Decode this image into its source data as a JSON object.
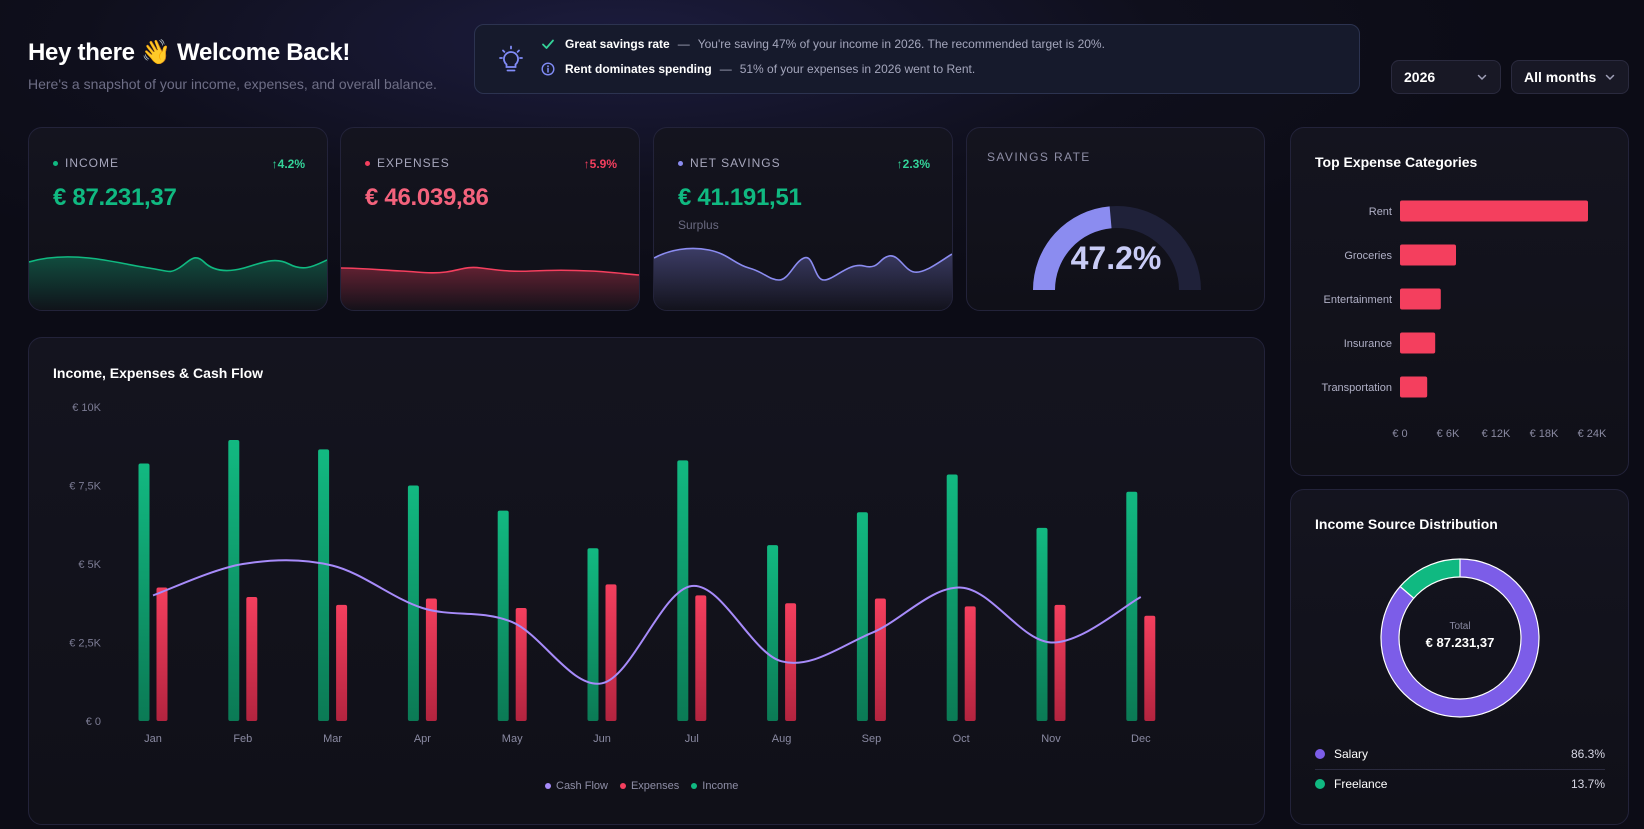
{
  "header": {
    "greeting_prefix": "Hey there",
    "greeting_emoji": "👋",
    "greeting_suffix": "Welcome Back!",
    "subtitle": "Here's a snapshot of your income, expenses, and overall balance."
  },
  "insights": [
    {
      "icon": "check-icon",
      "title": "Great savings rate",
      "text": "You're saving 47% of your income in 2026. The recommended target is 20%.",
      "color": "#34d399"
    },
    {
      "icon": "info-icon",
      "title": "Rent dominates spending",
      "text": "51% of your expenses in 2026 went to Rent.",
      "color": "#818cf8"
    }
  ],
  "filters": {
    "year": "2026",
    "period": "All months"
  },
  "kpis": {
    "income": {
      "label": "INCOME",
      "value": "€ 87.231,37",
      "trend": "↑4.2%",
      "color": "#10b981"
    },
    "expenses": {
      "label": "EXPENSES",
      "value": "€ 46.039,86",
      "trend": "↑5.9%",
      "color": "#f43f5e"
    },
    "net_savings": {
      "label": "NET SAVINGS",
      "value": "€ 41.191,51",
      "trend": "↑2.3%",
      "sub": "Surplus",
      "color": "#8b8cf0"
    },
    "savings_rate": {
      "label": "SAVINGS RATE",
      "value": "47.2%",
      "fraction": 0.472
    }
  },
  "colors": {
    "income": "#10b981",
    "expenses": "#f43f5e",
    "cashflow": "#a78bfa",
    "salary": "#7c5de8",
    "freelance": "#10b981"
  },
  "chart_data": [
    {
      "type": "bar",
      "title": "Income, Expenses & Cash Flow",
      "categories": [
        "Jan",
        "Feb",
        "Mar",
        "Apr",
        "May",
        "Jun",
        "Jul",
        "Aug",
        "Sep",
        "Oct",
        "Nov",
        "Dec"
      ],
      "yticks": [
        "€ 0",
        "€ 2,5K",
        "€ 5K",
        "€ 7,5K",
        "€ 10K"
      ],
      "ylim": [
        0,
        10000
      ],
      "series": [
        {
          "name": "Income",
          "values": [
            8200,
            8950,
            8650,
            7500,
            6700,
            5500,
            8300,
            5600,
            6650,
            7850,
            6150,
            7300
          ]
        },
        {
          "name": "Expenses",
          "values": [
            4250,
            3950,
            3700,
            3900,
            3600,
            4350,
            4000,
            3750,
            3900,
            3650,
            3700,
            3350
          ]
        },
        {
          "name": "Cash Flow",
          "values": [
            4000,
            5000,
            4950,
            3600,
            3150,
            1200,
            4300,
            1900,
            2800,
            4250,
            2500,
            3950
          ]
        }
      ],
      "legend": [
        "Cash Flow",
        "Expenses",
        "Income"
      ],
      "legend_position": "bottom"
    },
    {
      "type": "bar",
      "orientation": "horizontal",
      "title": "Top Expense Categories",
      "categories": [
        "Rent",
        "Groceries",
        "Entertainment",
        "Insurance",
        "Transportation"
      ],
      "values": [
        23500,
        7000,
        5100,
        4400,
        3400
      ],
      "xticks": [
        "€ 0",
        "€ 6K",
        "€ 12K",
        "€ 18K",
        "€ 24K"
      ],
      "xlim": [
        0,
        24000
      ]
    },
    {
      "type": "pie",
      "title": "Income Source Distribution",
      "center_label": "Total",
      "center_value": "€ 87.231,37",
      "slices": [
        {
          "name": "Salary",
          "value": 86.3,
          "label": "86.3%"
        },
        {
          "name": "Freelance",
          "value": 13.7,
          "label": "13.7%"
        }
      ]
    }
  ]
}
